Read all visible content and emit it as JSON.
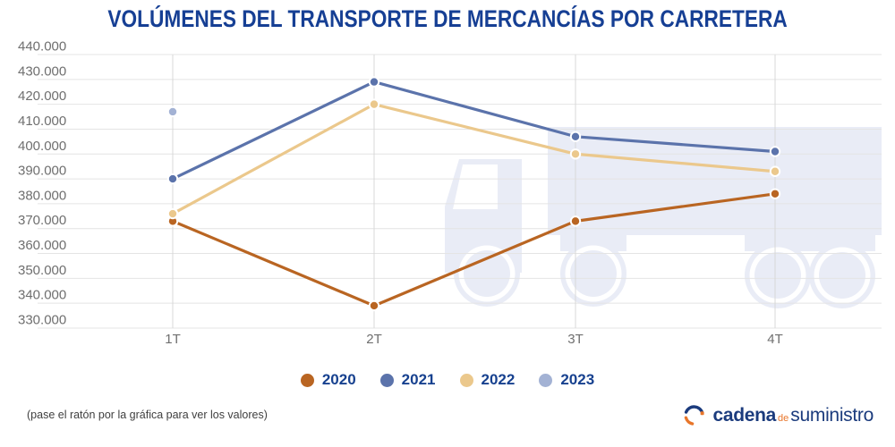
{
  "title": "VOLÚMENES DEL TRANSPORTE DE MERCANCÍAS POR CARRETERA",
  "footer": {
    "note": "(pase el ratón por la gráfica para ver los valores)"
  },
  "logo": {
    "icon": "swirl-circle-icon",
    "word1": "cadena",
    "word2": "de",
    "word3": "suministro"
  },
  "colors": {
    "title_text": "#163F94",
    "legend_text": "#17418F",
    "axis_text": "#6F6F6F",
    "grid_horizontal": "#E4E4E4",
    "grid_vertical": "#D8D8D8",
    "watermark": "#E9ECF6",
    "note_text": "#3F3F3F",
    "logo_blue": "#1B3B7D",
    "logo_orange": "#E8762B",
    "background": "#FFFFFF"
  },
  "chart_data": {
    "type": "line",
    "title": "VOLÚMENES DEL TRANSPORTE DE MERCANCÍAS POR CARRETERA",
    "categories": [
      "1T",
      "2T",
      "3T",
      "4T"
    ],
    "series": [
      {
        "name": "2020",
        "color": "#B96522",
        "values": [
          373000,
          339000,
          373000,
          384000
        ]
      },
      {
        "name": "2021",
        "color": "#5B73AB",
        "values": [
          390000,
          429000,
          407000,
          401000
        ]
      },
      {
        "name": "2022",
        "color": "#EBC88C",
        "values": [
          376000,
          420000,
          400000,
          393000
        ]
      },
      {
        "name": "2023",
        "color": "#A3B2D4",
        "values": [
          417000,
          null,
          null,
          null
        ]
      }
    ],
    "ylim": [
      330000,
      440000
    ],
    "ytick_step": 10000,
    "ytick_labels": [
      "440.000",
      "430.000",
      "420.000",
      "410.000",
      "400.000",
      "390.000",
      "380.000",
      "370.000",
      "360.000",
      "350.000",
      "340.000",
      "330.000"
    ],
    "xlabel": "",
    "ylabel": "",
    "grid": true,
    "legend_position": "bottom",
    "watermark": "truck-silhouette"
  }
}
